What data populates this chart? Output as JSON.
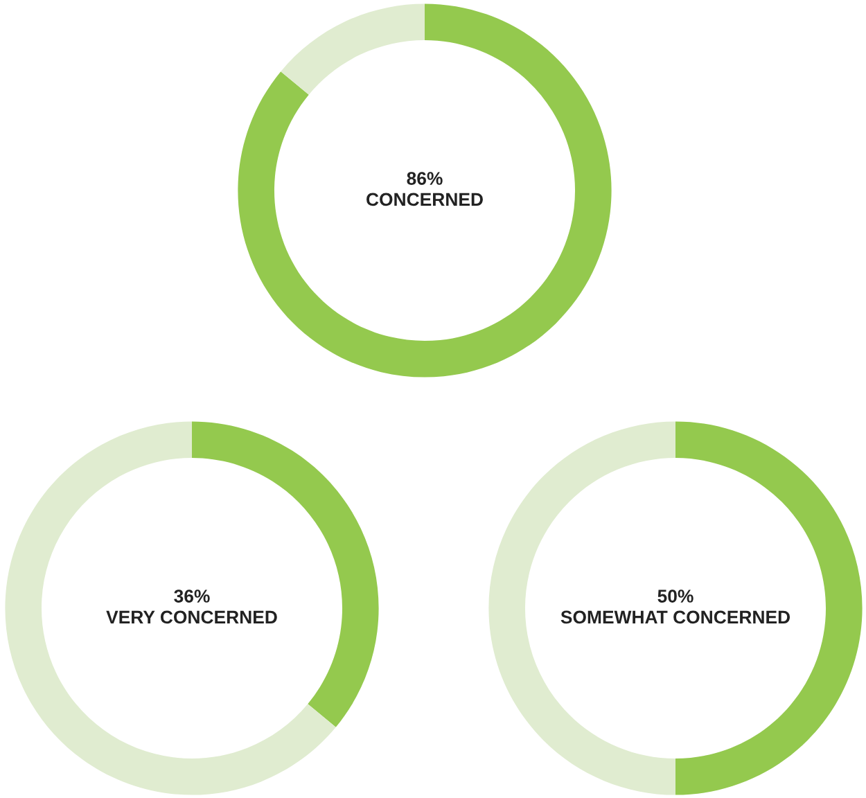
{
  "chart_data": [
    {
      "type": "donut",
      "categories": [
        "CONCERNED",
        null
      ],
      "values": [
        86,
        14
      ],
      "colors": [
        "#94c94e",
        "#e0ecd0"
      ],
      "value_labels": [
        "86%",
        null
      ]
    },
    {
      "type": "donut",
      "categories": [
        "VERY CONCERNED",
        null
      ],
      "values": [
        36,
        64
      ],
      "colors": [
        "#94c94e",
        "#e0ecd0"
      ],
      "value_labels": [
        "36%",
        null
      ]
    },
    {
      "type": "donut",
      "categories": [
        "SOMEWHAT CONCERNED",
        null
      ],
      "values": [
        50,
        50
      ],
      "colors": [
        "#94c94e",
        "#e0ecd0"
      ],
      "value_labels": [
        "50%",
        null
      ]
    }
  ]
}
